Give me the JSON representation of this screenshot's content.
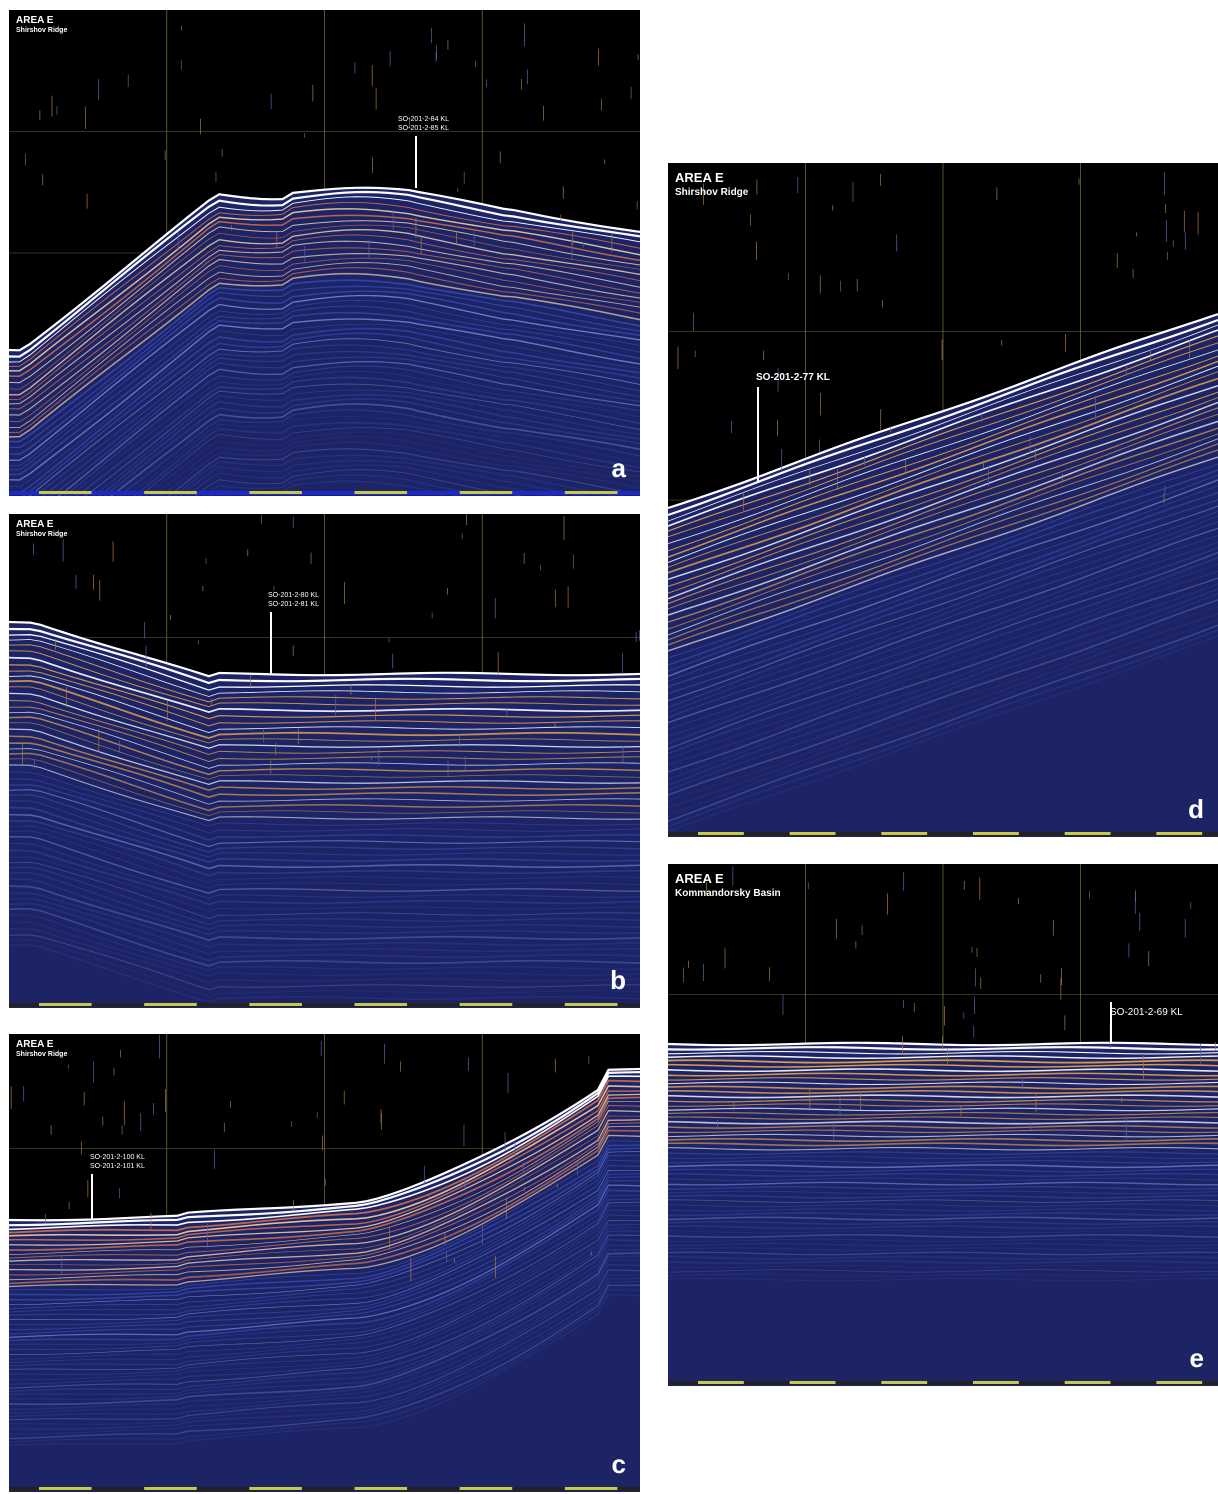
{
  "panels": {
    "a": {
      "letter": "a",
      "title": "AREA E",
      "subtitle": "Shirshov Ridge",
      "cores": [
        "SO-201-2-84 KL",
        "SO-201-2-85 KL"
      ]
    },
    "b": {
      "letter": "b",
      "title": "AREA E",
      "subtitle": "Shirshov Ridge",
      "cores": [
        "SO-201-2-80 KL",
        "SO-201-2-81 KL"
      ]
    },
    "c": {
      "letter": "c",
      "title": "AREA E",
      "subtitle": "Shirshov Ridge",
      "cores": [
        "SO-201-2-100 KL",
        "SO-201-2-101 KL"
      ]
    },
    "d": {
      "letter": "d",
      "title": "AREA E",
      "subtitle": "Shirshov Ridge",
      "cores": [
        "SO-201-2-77 KL"
      ]
    },
    "e": {
      "letter": "e",
      "title": "AREA E",
      "subtitle": "Kommandorsky Basin",
      "cores": [
        "SO-201-2-69 KL"
      ]
    }
  },
  "colors": {
    "background": "#000000",
    "layer_orange": "#e8a24a",
    "layer_blue": "#2b3fa0",
    "layer_white": "#ffffff",
    "grid": "#6b6a3a",
    "scale_bar": "#c8c84a"
  }
}
